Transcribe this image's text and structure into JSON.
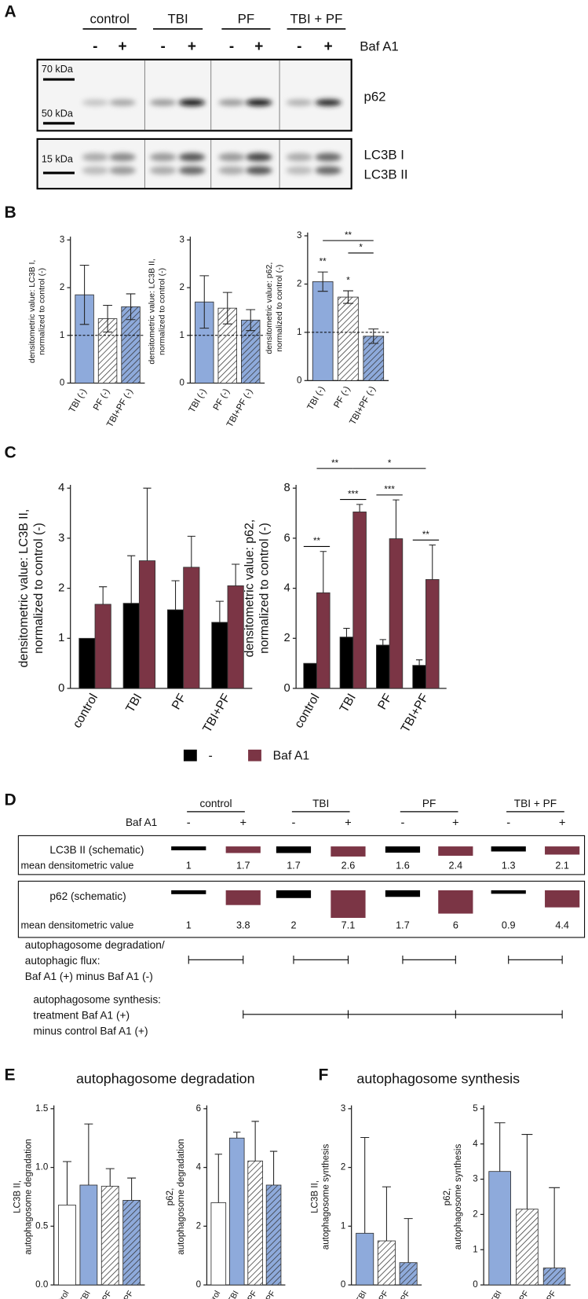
{
  "panels": [
    "A",
    "B",
    "C",
    "D",
    "E",
    "F"
  ],
  "blot": {
    "groups": [
      "control",
      "TBI",
      "PF",
      "TBI + PF"
    ],
    "treatment_label": "Baf A1",
    "treatment": [
      "-",
      "+"
    ],
    "markers": [
      "70 kDa",
      "50 kDa",
      "15 kDa"
    ],
    "proteins": [
      "p62",
      "LC3B I",
      "LC3B II"
    ]
  },
  "schematic": {
    "groups": [
      "control",
      "TBI",
      "PF",
      "TBI + PF"
    ],
    "treatment_label": "Baf A1",
    "treatment": [
      "-",
      "+"
    ],
    "colors": [
      "#000000",
      "#7b3545"
    ],
    "rows": [
      {
        "label": "LC3B II (schematic)",
        "value_label": "mean densitometric value",
        "values": [
          1,
          1.7,
          1.7,
          2.6,
          1.6,
          2.4,
          1.3,
          2.1
        ]
      },
      {
        "label": "p62 (schematic)",
        "value_label": "mean densitometric value",
        "values": [
          1,
          3.8,
          2,
          7.1,
          1.7,
          6,
          0.9,
          4.4
        ]
      }
    ],
    "notes": [
      [
        "autophagosome degradation/",
        "autophagic flux:",
        "Baf A1 (+) minus Baf A1 (-)"
      ],
      [
        "autophagosome synthesis:",
        "treatment Baf A1 (+)",
        "minus control Baf A1 (+)"
      ]
    ]
  },
  "section_titles": [
    "autophagosome degradation",
    "autophagosome synthesis"
  ],
  "chart_data": [
    {
      "type": "bar",
      "ylabel": [
        "densitometric value: LC3B I,",
        "normalized to control (-)"
      ],
      "categories": [
        "TBI (-)",
        "PF (-)",
        "TBI+PF (-)"
      ],
      "values": [
        1.85,
        1.35,
        1.6
      ],
      "errors": [
        0.62,
        0.28,
        0.27
      ],
      "colors": [
        "#8eaadb",
        "#ffffff",
        "#8eaadb"
      ],
      "hatch": [
        false,
        true,
        true
      ],
      "error_direction": "both",
      "refline": 1,
      "ylim": [
        0,
        3
      ],
      "yticks": [
        0,
        1,
        2,
        3
      ]
    },
    {
      "type": "bar",
      "ylabel": [
        "densitometric value: LC3B II,",
        "normalized to control (-)"
      ],
      "categories": [
        "TBI (-)",
        "PF (-)",
        "TBI+PF (-)"
      ],
      "values": [
        1.7,
        1.57,
        1.32
      ],
      "errors": [
        0.55,
        0.33,
        0.22
      ],
      "colors": [
        "#8eaadb",
        "#ffffff",
        "#8eaadb"
      ],
      "hatch": [
        false,
        true,
        true
      ],
      "error_direction": "both",
      "refline": 1,
      "ylim": [
        0,
        3
      ],
      "yticks": [
        0,
        1,
        2,
        3
      ]
    },
    {
      "type": "bar",
      "ylabel": [
        "densitometric value: p62,",
        "normalized to control (-)"
      ],
      "categories": [
        "TBI (-)",
        "PF (-)",
        "TBI+PF (-)"
      ],
      "values": [
        2.05,
        1.73,
        0.92
      ],
      "errors": [
        0.2,
        0.13,
        0.15
      ],
      "colors": [
        "#8eaadb",
        "#ffffff",
        "#8eaadb"
      ],
      "hatch": [
        false,
        true,
        true
      ],
      "error_direction": "both",
      "refline": 1,
      "ylim": [
        0,
        3
      ],
      "yticks": [
        0,
        1,
        2,
        3
      ],
      "annotations": [
        {
          "category": "TBI (-)",
          "text": "**"
        },
        {
          "category": "PF (-)",
          "text": "*"
        }
      ],
      "brackets": [
        {
          "from": "TBI (-)",
          "to": "TBI+PF (-)",
          "text": "**"
        },
        {
          "from": "PF (-)",
          "to": "TBI+PF (-)",
          "text": "*"
        }
      ]
    },
    {
      "type": "bar",
      "ylabel": [
        "densitometric value: LC3B II,",
        "normalized to control (-)"
      ],
      "categories": [
        "control",
        "TBI",
        "PF",
        "TBI+PF"
      ],
      "series": [
        {
          "name": "-",
          "color": "#000000",
          "values": [
            1,
            1.7,
            1.57,
            1.32
          ],
          "errors": [
            null,
            0.95,
            0.58,
            0.42
          ]
        },
        {
          "name": "Baf A1",
          "color": "#7b3545",
          "values": [
            1.68,
            2.55,
            2.42,
            2.05
          ],
          "errors": [
            0.35,
            1.45,
            0.62,
            0.43
          ]
        }
      ],
      "error_direction": "up",
      "ylim": [
        0,
        4
      ],
      "yticks": [
        0,
        1,
        2,
        3,
        4
      ],
      "legend": "bottom"
    },
    {
      "type": "bar",
      "ylabel": [
        "densitometric value: p62,",
        "normalized to control (-)"
      ],
      "categories": [
        "control",
        "TBI",
        "PF",
        "TBI+PF"
      ],
      "series": [
        {
          "color": "#000000",
          "values": [
            1,
            2.05,
            1.73,
            0.92
          ],
          "errors": [
            null,
            0.35,
            0.22,
            0.22
          ]
        },
        {
          "color": "#7b3545",
          "values": [
            3.82,
            7.05,
            5.98,
            4.35
          ],
          "errors": [
            1.65,
            0.3,
            1.55,
            1.38
          ]
        }
      ],
      "error_direction": "up",
      "ylim": [
        0,
        8
      ],
      "yticks": [
        0,
        2,
        4,
        6,
        8
      ],
      "annotations": [
        {
          "category": "control",
          "text": "**"
        },
        {
          "category": "TBI",
          "text": "***"
        },
        {
          "category": "PF",
          "text": "***"
        },
        {
          "category": "TBI+PF",
          "text": "**"
        }
      ],
      "brackets": [
        {
          "from": "control",
          "to": "TBI",
          "text": "**"
        },
        {
          "from": "TBI",
          "to": "TBI+PF",
          "text": "*"
        }
      ]
    },
    {
      "type": "bar",
      "ylabel": [
        "LC3B II,",
        "autophagosome degradation"
      ],
      "categories": [
        "control",
        "TBI",
        "PF",
        "TBI+PF"
      ],
      "values": [
        0.68,
        0.85,
        0.84,
        0.72
      ],
      "errors": [
        0.37,
        0.52,
        0.15,
        0.19
      ],
      "colors": [
        "#ffffff",
        "#8eaadb",
        "#ffffff",
        "#8eaadb"
      ],
      "hatch": [
        false,
        false,
        true,
        true
      ],
      "error_direction": "up",
      "ylim": [
        0,
        1.5
      ],
      "yticks": [
        {
          "value": 0,
          "label": "0.0"
        },
        0.5,
        {
          "value": 1,
          "label": "1.0"
        },
        1.5
      ]
    },
    {
      "type": "bar",
      "ylabel": [
        "p62,",
        "autophagosome degradation"
      ],
      "categories": [
        "control",
        "TBI",
        "PF",
        "TBI+PF"
      ],
      "values": [
        2.8,
        5.0,
        4.22,
        3.4
      ],
      "errors": [
        1.65,
        0.2,
        1.35,
        1.15
      ],
      "colors": [
        "#ffffff",
        "#8eaadb",
        "#ffffff",
        "#8eaadb"
      ],
      "hatch": [
        false,
        false,
        true,
        true
      ],
      "error_direction": "up",
      "ylim": [
        0,
        6
      ],
      "yticks": [
        0,
        2,
        4,
        6
      ]
    },
    {
      "type": "bar",
      "ylabel": [
        "LC3B II,",
        "autophagosome synthesis"
      ],
      "categories": [
        "TBI",
        "PF",
        "TBI+PF"
      ],
      "values": [
        0.88,
        0.75,
        0.38
      ],
      "errors": [
        1.63,
        0.92,
        0.75
      ],
      "colors": [
        "#8eaadb",
        "#ffffff",
        "#8eaadb"
      ],
      "hatch": [
        false,
        true,
        true
      ],
      "error_direction": "up",
      "ylim": [
        0,
        3
      ],
      "yticks": [
        0,
        1,
        2,
        3
      ]
    },
    {
      "type": "bar",
      "ylabel": [
        "p62,",
        "autophagosome synthesis"
      ],
      "categories": [
        "TBI",
        "PF",
        "TBI+PF"
      ],
      "values": [
        3.22,
        2.15,
        0.48
      ],
      "errors": [
        1.38,
        2.12,
        2.28
      ],
      "colors": [
        "#8eaadb",
        "#ffffff",
        "#8eaadb"
      ],
      "hatch": [
        false,
        true,
        true
      ],
      "error_direction": "up",
      "ylim": [
        0,
        5
      ],
      "yticks": [
        0,
        1,
        2,
        3,
        4,
        5
      ]
    }
  ]
}
